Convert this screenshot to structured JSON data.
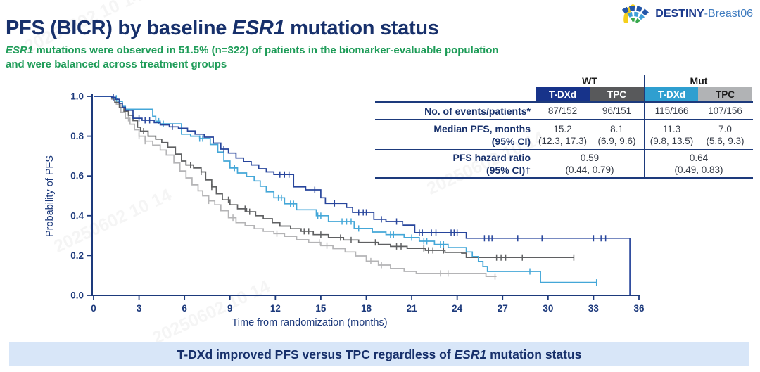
{
  "logo": {
    "primary": "DESTINY",
    "secondary": "-Breast06"
  },
  "title": {
    "pre": "PFS (BICR) by baseline ",
    "italic": "ESR1",
    "post": " mutation status"
  },
  "subtitle": {
    "italic": "ESR1",
    "line1_rest": " mutations were observed in 51.5% (n=322) of patients in the biomarker-evaluable population",
    "line2": "and were balanced across treatment groups"
  },
  "watermark": {
    "text": "20250602 10 14"
  },
  "colors": {
    "navy": "#17306b",
    "green": "#1e9c58",
    "banner_bg": "#d8e6f8",
    "table_line": "#1d3a7c",
    "wt_tdxd": "#27459c",
    "wt_tpc": "#5f6062",
    "mut_tdxd": "#44a7d8",
    "mut_tpc": "#b4b4b6"
  },
  "table": {
    "groups": [
      {
        "label": "WT"
      },
      {
        "label": "Mut"
      }
    ],
    "columns": [
      {
        "label": "T-DXd",
        "bg": "#17338a",
        "fg": "#ffffff"
      },
      {
        "label": "TPC",
        "bg": "#58595b",
        "fg": "#ffffff"
      },
      {
        "label": "T-DXd",
        "bg": "#2f9fd0",
        "fg": "#ffffff"
      },
      {
        "label": "TPC",
        "bg": "#b1b3b5",
        "fg": "#1a1a1a"
      }
    ],
    "rows": [
      {
        "id": "events",
        "label_lines": [
          "No. of events/patients*"
        ],
        "cells": [
          [
            "87/152"
          ],
          [
            "96/151"
          ],
          [
            "115/166"
          ],
          [
            "107/156"
          ]
        ],
        "span": 1
      },
      {
        "id": "median",
        "label_lines": [
          "Median PFS, months",
          "(95% CI)"
        ],
        "cells": [
          [
            "15.2",
            "(12.3, 17.3)"
          ],
          [
            "8.1",
            "(6.9, 9.6)"
          ],
          [
            "11.3",
            "(9.8, 13.5)"
          ],
          [
            "7.0",
            "(5.6, 9.3)"
          ]
        ],
        "span": 1
      },
      {
        "id": "hr",
        "label_lines": [
          "PFS hazard ratio",
          "(95% CI)†"
        ],
        "cells": [
          [
            "0.59",
            "(0.44, 0.79)"
          ],
          [
            "0.64",
            "(0.49, 0.83)"
          ]
        ],
        "span": 2
      }
    ]
  },
  "banner": {
    "pre": "T-DXd improved PFS versus TPC regardless of ",
    "italic": "ESR1",
    "post": " mutation status"
  },
  "chart_data": {
    "type": "line",
    "subtype": "kaplan-meier-step",
    "title": "",
    "xlabel": "Time from randomization (months)",
    "ylabel": "Probability of PFS",
    "xlim": [
      0,
      36
    ],
    "ylim": [
      0.0,
      1.0
    ],
    "xticks": [
      0,
      3,
      6,
      9,
      12,
      15,
      18,
      21,
      24,
      27,
      30,
      33,
      36
    ],
    "ytick_labels": [
      "0.0",
      "0.2",
      "0.4",
      "0.6",
      "0.8",
      "1.0"
    ],
    "grid": false,
    "legend": "none (see table)",
    "series": [
      {
        "name": "T-DXd (WT)",
        "color": "#27459c",
        "median_pfs_months": 15.2,
        "end": 35.4,
        "steps": [
          [
            0,
            1
          ],
          [
            1.2,
            0.995
          ],
          [
            1.45,
            0.985
          ],
          [
            1.7,
            0.965
          ],
          [
            1.9,
            0.945
          ],
          [
            2.1,
            0.93
          ],
          [
            2.6,
            0.89
          ],
          [
            3.2,
            0.88
          ],
          [
            4.0,
            0.868
          ],
          [
            4.4,
            0.857
          ],
          [
            5.0,
            0.847
          ],
          [
            5.6,
            0.84
          ],
          [
            6.2,
            0.826
          ],
          [
            6.7,
            0.81
          ],
          [
            7.3,
            0.795
          ],
          [
            7.9,
            0.765
          ],
          [
            8.4,
            0.735
          ],
          [
            8.9,
            0.715
          ],
          [
            9.4,
            0.69
          ],
          [
            9.9,
            0.672
          ],
          [
            10.4,
            0.655
          ],
          [
            10.9,
            0.636
          ],
          [
            11.4,
            0.62
          ],
          [
            11.9,
            0.607
          ],
          [
            13.2,
            0.545
          ],
          [
            14.0,
            0.53
          ],
          [
            15.0,
            0.49
          ],
          [
            15.3,
            0.462
          ],
          [
            16.7,
            0.442
          ],
          [
            17.1,
            0.417
          ],
          [
            18.5,
            0.382
          ],
          [
            19.3,
            0.371
          ],
          [
            20.4,
            0.353
          ],
          [
            21.2,
            0.315
          ],
          [
            24.6,
            0.287
          ],
          [
            35.4,
            0
          ]
        ],
        "censors": [
          1.3,
          3.0,
          3.4,
          3.7,
          5.2,
          8.6,
          12.3,
          12.6,
          12.9,
          14.6,
          15.9,
          17.5,
          17.8,
          18.0,
          19.0,
          20.0,
          21.5,
          21.7,
          22.3,
          22.6,
          23.6,
          23.8,
          24.0,
          25.8,
          26.1,
          26.3,
          28.0,
          29.6,
          33.0,
          33.5,
          33.8
        ]
      },
      {
        "name": "TPC (WT)",
        "color": "#5f6062",
        "median_pfs_months": 8.1,
        "end": 31.7,
        "steps": [
          [
            0,
            1
          ],
          [
            1.2,
            0.99
          ],
          [
            1.4,
            0.97
          ],
          [
            1.7,
            0.943
          ],
          [
            2.0,
            0.925
          ],
          [
            2.3,
            0.905
          ],
          [
            2.6,
            0.878
          ],
          [
            2.9,
            0.845
          ],
          [
            3.1,
            0.825
          ],
          [
            3.6,
            0.8
          ],
          [
            4.1,
            0.785
          ],
          [
            4.5,
            0.768
          ],
          [
            4.9,
            0.745
          ],
          [
            5.4,
            0.71
          ],
          [
            5.8,
            0.675
          ],
          [
            6.1,
            0.655
          ],
          [
            6.6,
            0.64
          ],
          [
            7.1,
            0.62
          ],
          [
            7.4,
            0.58
          ],
          [
            7.8,
            0.545
          ],
          [
            8.1,
            0.51
          ],
          [
            8.5,
            0.48
          ],
          [
            9.0,
            0.455
          ],
          [
            9.5,
            0.435
          ],
          [
            10.1,
            0.42
          ],
          [
            10.7,
            0.4
          ],
          [
            11.2,
            0.385
          ],
          [
            11.8,
            0.365
          ],
          [
            12.3,
            0.348
          ],
          [
            13.0,
            0.335
          ],
          [
            13.7,
            0.322
          ],
          [
            14.5,
            0.305
          ],
          [
            15.5,
            0.29
          ],
          [
            16.5,
            0.278
          ],
          [
            17.5,
            0.266
          ],
          [
            18.8,
            0.256
          ],
          [
            19.6,
            0.246
          ],
          [
            20.7,
            0.236
          ],
          [
            21.9,
            0.226
          ],
          [
            23.2,
            0.216
          ],
          [
            24.3,
            0.212
          ],
          [
            24.6,
            0.19
          ]
        ],
        "censors": [
          3.3,
          6.4,
          7.1,
          7.8,
          8.9,
          10.0,
          10.3,
          13.9,
          14.2,
          15.0,
          16.3,
          17.0,
          18.6,
          20.0,
          20.3,
          21.8,
          22.1,
          22.4,
          23.1,
          26.6,
          26.9,
          27.2,
          28.3,
          31.7
        ]
      },
      {
        "name": "T-DXd (Mut)",
        "color": "#44a7d8",
        "median_pfs_months": 11.3,
        "end": 33.2,
        "steps": [
          [
            0,
            1
          ],
          [
            1.3,
            0.99
          ],
          [
            1.6,
            0.975
          ],
          [
            1.9,
            0.95
          ],
          [
            2.1,
            0.935
          ],
          [
            3.9,
            0.9
          ],
          [
            4.1,
            0.875
          ],
          [
            4.4,
            0.862
          ],
          [
            5.8,
            0.81
          ],
          [
            6.4,
            0.8
          ],
          [
            7.0,
            0.788
          ],
          [
            7.7,
            0.758
          ],
          [
            8.2,
            0.72
          ],
          [
            8.6,
            0.675
          ],
          [
            9.0,
            0.64
          ],
          [
            9.5,
            0.615
          ],
          [
            10.1,
            0.598
          ],
          [
            10.6,
            0.575
          ],
          [
            11.0,
            0.548
          ],
          [
            11.4,
            0.52
          ],
          [
            11.9,
            0.49
          ],
          [
            12.6,
            0.46
          ],
          [
            13.4,
            0.43
          ],
          [
            14.7,
            0.4
          ],
          [
            15.5,
            0.371
          ],
          [
            17.2,
            0.336
          ],
          [
            18.4,
            0.318
          ],
          [
            19.3,
            0.305
          ],
          [
            20.5,
            0.29
          ],
          [
            21.5,
            0.272
          ],
          [
            22.5,
            0.256
          ],
          [
            23.4,
            0.24
          ],
          [
            24.6,
            0.218
          ],
          [
            25.0,
            0.195
          ],
          [
            25.4,
            0.17
          ],
          [
            25.7,
            0.145
          ],
          [
            26.0,
            0.12
          ],
          [
            29.5,
            0.065
          ]
        ],
        "censors": [
          1.5,
          4.3,
          4.6,
          7.0,
          7.2,
          9.3,
          12.2,
          12.4,
          13.0,
          13.2,
          14.8,
          15.0,
          16.4,
          16.7,
          17.0,
          17.5,
          19.6,
          19.8,
          21.0,
          21.8,
          22.0,
          22.9,
          23.1,
          28.8,
          33.2
        ]
      },
      {
        "name": "TPC (Mut)",
        "color": "#b4b4b6",
        "median_pfs_months": 7.0,
        "end": 26.6,
        "steps": [
          [
            0,
            1
          ],
          [
            1.2,
            0.985
          ],
          [
            1.5,
            0.96
          ],
          [
            1.8,
            0.92
          ],
          [
            2.1,
            0.89
          ],
          [
            2.4,
            0.86
          ],
          [
            2.7,
            0.832
          ],
          [
            3.0,
            0.8
          ],
          [
            3.4,
            0.775
          ],
          [
            3.9,
            0.755
          ],
          [
            4.4,
            0.73
          ],
          [
            4.8,
            0.705
          ],
          [
            5.3,
            0.665
          ],
          [
            5.7,
            0.625
          ],
          [
            6.1,
            0.59
          ],
          [
            6.5,
            0.555
          ],
          [
            6.9,
            0.525
          ],
          [
            7.2,
            0.5
          ],
          [
            7.6,
            0.475
          ],
          [
            8.0,
            0.455
          ],
          [
            8.4,
            0.425
          ],
          [
            8.9,
            0.39
          ],
          [
            9.4,
            0.365
          ],
          [
            10.0,
            0.35
          ],
          [
            10.6,
            0.335
          ],
          [
            11.2,
            0.322
          ],
          [
            11.9,
            0.31
          ],
          [
            12.6,
            0.296
          ],
          [
            13.4,
            0.28
          ],
          [
            14.2,
            0.266
          ],
          [
            15.0,
            0.25
          ],
          [
            15.8,
            0.235
          ],
          [
            16.6,
            0.218
          ],
          [
            17.3,
            0.198
          ],
          [
            18.0,
            0.172
          ],
          [
            18.8,
            0.152
          ],
          [
            19.6,
            0.135
          ],
          [
            20.5,
            0.12
          ],
          [
            21.3,
            0.11
          ],
          [
            25.9,
            0.095
          ]
        ],
        "censors": [
          2.3,
          3.0,
          3.4,
          7.6,
          9.2,
          12.1,
          14.9,
          15.4,
          18.3,
          19.0,
          22.9,
          23.4,
          26.5
        ]
      }
    ]
  }
}
